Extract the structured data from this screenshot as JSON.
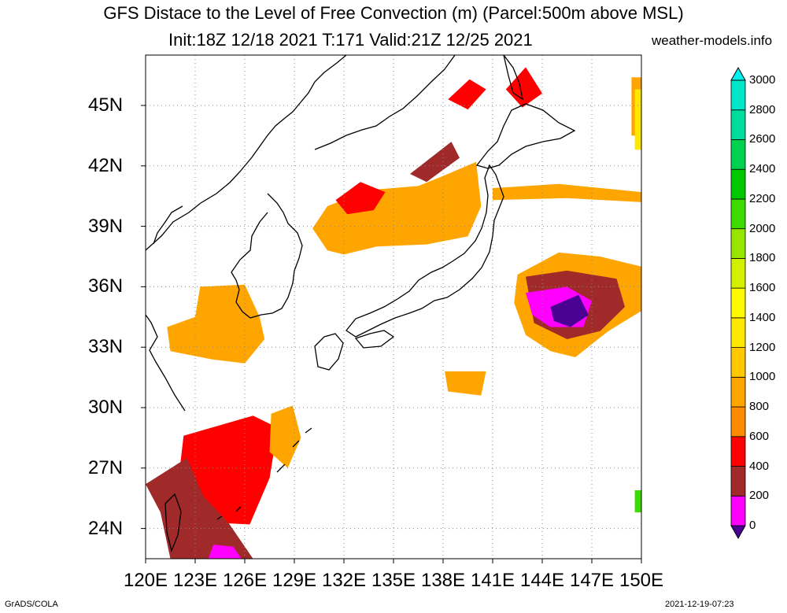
{
  "title": {
    "line1": "GFS Distace to the Level of Free Convection (m) (Parcel:500m above MSL)",
    "line2": "Init:18Z 12/18 2021 T:171 Valid:21Z 12/25 2021",
    "site": "weather-models.info"
  },
  "footer": {
    "left": "GrADS/COLA",
    "right": "2021-12-19-07:23"
  },
  "map": {
    "lon_range": [
      120,
      150
    ],
    "lat_range": [
      22.5,
      47.5
    ],
    "lat_labels": [
      "24N",
      "27N",
      "30N",
      "33N",
      "36N",
      "39N",
      "42N",
      "45N"
    ],
    "lat_values": [
      24,
      27,
      30,
      33,
      36,
      39,
      42,
      45
    ],
    "lon_labels": [
      "120E",
      "123E",
      "126E",
      "129E",
      "132E",
      "135E",
      "138E",
      "141E",
      "144E",
      "147E",
      "150E"
    ],
    "lon_values": [
      120,
      123,
      126,
      129,
      132,
      135,
      138,
      141,
      144,
      147,
      150
    ]
  },
  "colorbar": {
    "labels": [
      "0",
      "200",
      "400",
      "600",
      "800",
      "1000",
      "1200",
      "1400",
      "1600",
      "1800",
      "2000",
      "2200",
      "2400",
      "2600",
      "2800",
      "3000"
    ],
    "colors": [
      "#4a0090",
      "#ff00ff",
      "#a02a2a",
      "#ff0000",
      "#ff8c00",
      "#ffa500",
      "#ffc800",
      "#ffe800",
      "#fffa00",
      "#d2f000",
      "#96e600",
      "#3cdc00",
      "#00c800",
      "#00d250",
      "#00dc9b",
      "#00e6c8",
      "#00f0f0"
    ]
  },
  "fields": [
    {
      "color": "#ffa500",
      "pts": [
        [
          123.3,
          36.0
        ],
        [
          126.0,
          36.1
        ],
        [
          126.9,
          34.5
        ],
        [
          127.2,
          33.4
        ],
        [
          126.0,
          32.2
        ],
        [
          124.0,
          32.4
        ],
        [
          121.5,
          32.8
        ],
        [
          121.3,
          34.0
        ],
        [
          123.0,
          34.5
        ]
      ]
    },
    {
      "color": "#ffa500",
      "pts": [
        [
          130.1,
          38.9
        ],
        [
          131.0,
          40.0
        ],
        [
          133.5,
          40.8
        ],
        [
          136.5,
          41.0
        ],
        [
          138.0,
          41.5
        ],
        [
          140.0,
          42.2
        ],
        [
          140.3,
          40.0
        ],
        [
          139.5,
          38.5
        ],
        [
          137.0,
          38.1
        ],
        [
          134.0,
          38.0
        ],
        [
          132.0,
          37.6
        ],
        [
          131.0,
          37.8
        ]
      ]
    },
    {
      "color": "#ff0000",
      "pts": [
        [
          131.5,
          40.3
        ],
        [
          133.0,
          41.2
        ],
        [
          134.5,
          40.7
        ],
        [
          133.8,
          39.8
        ],
        [
          132.2,
          39.6
        ]
      ]
    },
    {
      "color": "#a02a2a",
      "pts": [
        [
          136.0,
          41.6
        ],
        [
          138.5,
          43.2
        ],
        [
          139.0,
          42.4
        ],
        [
          137.0,
          41.2
        ]
      ]
    },
    {
      "color": "#ff0000",
      "pts": [
        [
          138.3,
          45.3
        ],
        [
          139.6,
          46.3
        ],
        [
          140.6,
          45.8
        ],
        [
          139.5,
          44.8
        ]
      ]
    },
    {
      "color": "#ff0000",
      "pts": [
        [
          141.8,
          45.8
        ],
        [
          143.0,
          46.9
        ],
        [
          144.0,
          45.6
        ],
        [
          142.8,
          44.9
        ]
      ]
    },
    {
      "color": "#ffa500",
      "pts": [
        [
          141.0,
          40.9
        ],
        [
          145.0,
          41.1
        ],
        [
          150.0,
          40.7
        ],
        [
          150.0,
          40.2
        ],
        [
          145.5,
          40.4
        ],
        [
          141.0,
          40.3
        ]
      ]
    },
    {
      "color": "#ffa500",
      "pts": [
        [
          142.5,
          36.6
        ],
        [
          145.0,
          37.7
        ],
        [
          147.5,
          37.5
        ],
        [
          150.0,
          37.0
        ],
        [
          150.0,
          34.8
        ],
        [
          148.0,
          33.8
        ],
        [
          146.0,
          32.5
        ],
        [
          144.5,
          32.8
        ],
        [
          143.0,
          33.6
        ],
        [
          142.3,
          35.2
        ]
      ]
    },
    {
      "color": "#a02a2a",
      "pts": [
        [
          143.0,
          36.5
        ],
        [
          145.5,
          36.8
        ],
        [
          148.5,
          36.4
        ],
        [
          149.0,
          35.0
        ],
        [
          147.5,
          33.8
        ],
        [
          145.5,
          33.4
        ],
        [
          143.5,
          34.2
        ]
      ]
    },
    {
      "color": "#ff00ff",
      "pts": [
        [
          143.0,
          35.7
        ],
        [
          145.5,
          36.0
        ],
        [
          147.0,
          35.3
        ],
        [
          146.5,
          34.0
        ],
        [
          144.5,
          34.0
        ],
        [
          143.4,
          34.6
        ]
      ]
    },
    {
      "color": "#4a0090",
      "pts": [
        [
          144.5,
          35.0
        ],
        [
          146.2,
          35.6
        ],
        [
          146.8,
          34.6
        ],
        [
          145.7,
          34.0
        ],
        [
          144.7,
          34.3
        ]
      ]
    },
    {
      "color": "#ff0000",
      "pts": [
        [
          122.3,
          28.6
        ],
        [
          126.5,
          29.6
        ],
        [
          128.0,
          29.0
        ],
        [
          127.5,
          26.5
        ],
        [
          126.3,
          24.2
        ],
        [
          124.0,
          24.3
        ],
        [
          122.0,
          26.5
        ]
      ]
    },
    {
      "color": "#a02a2a",
      "pts": [
        [
          120.0,
          26.2
        ],
        [
          122.5,
          27.5
        ],
        [
          123.5,
          25.6
        ],
        [
          125.0,
          24.3
        ],
        [
          126.5,
          22.5
        ],
        [
          121.5,
          22.5
        ],
        [
          120.9,
          24.8
        ]
      ]
    },
    {
      "color": "#ff00ff",
      "pts": [
        [
          123.8,
          22.5
        ],
        [
          125.8,
          22.5
        ],
        [
          125.3,
          23.1
        ],
        [
          124.1,
          23.2
        ]
      ]
    },
    {
      "color": "#ffa500",
      "pts": [
        [
          127.6,
          29.7
        ],
        [
          128.9,
          30.1
        ],
        [
          129.4,
          28.5
        ],
        [
          128.6,
          27.0
        ],
        [
          127.5,
          27.8
        ]
      ]
    },
    {
      "color": "#ffa500",
      "pts": [
        [
          149.4,
          46.4
        ],
        [
          150.0,
          46.4
        ],
        [
          150.0,
          43.5
        ],
        [
          149.4,
          43.5
        ]
      ]
    },
    {
      "color": "#ffe800",
      "pts": [
        [
          149.6,
          45.8
        ],
        [
          150.0,
          45.8
        ],
        [
          150.0,
          42.8
        ],
        [
          149.6,
          42.8
        ]
      ]
    },
    {
      "color": "#3cdc00",
      "pts": [
        [
          149.6,
          25.9
        ],
        [
          150.0,
          25.9
        ],
        [
          150.0,
          24.8
        ],
        [
          149.6,
          24.8
        ]
      ]
    },
    {
      "color": "#ffa500",
      "pts": [
        [
          138.1,
          31.8
        ],
        [
          140.6,
          31.8
        ],
        [
          140.3,
          30.6
        ],
        [
          138.3,
          30.8
        ]
      ]
    }
  ]
}
